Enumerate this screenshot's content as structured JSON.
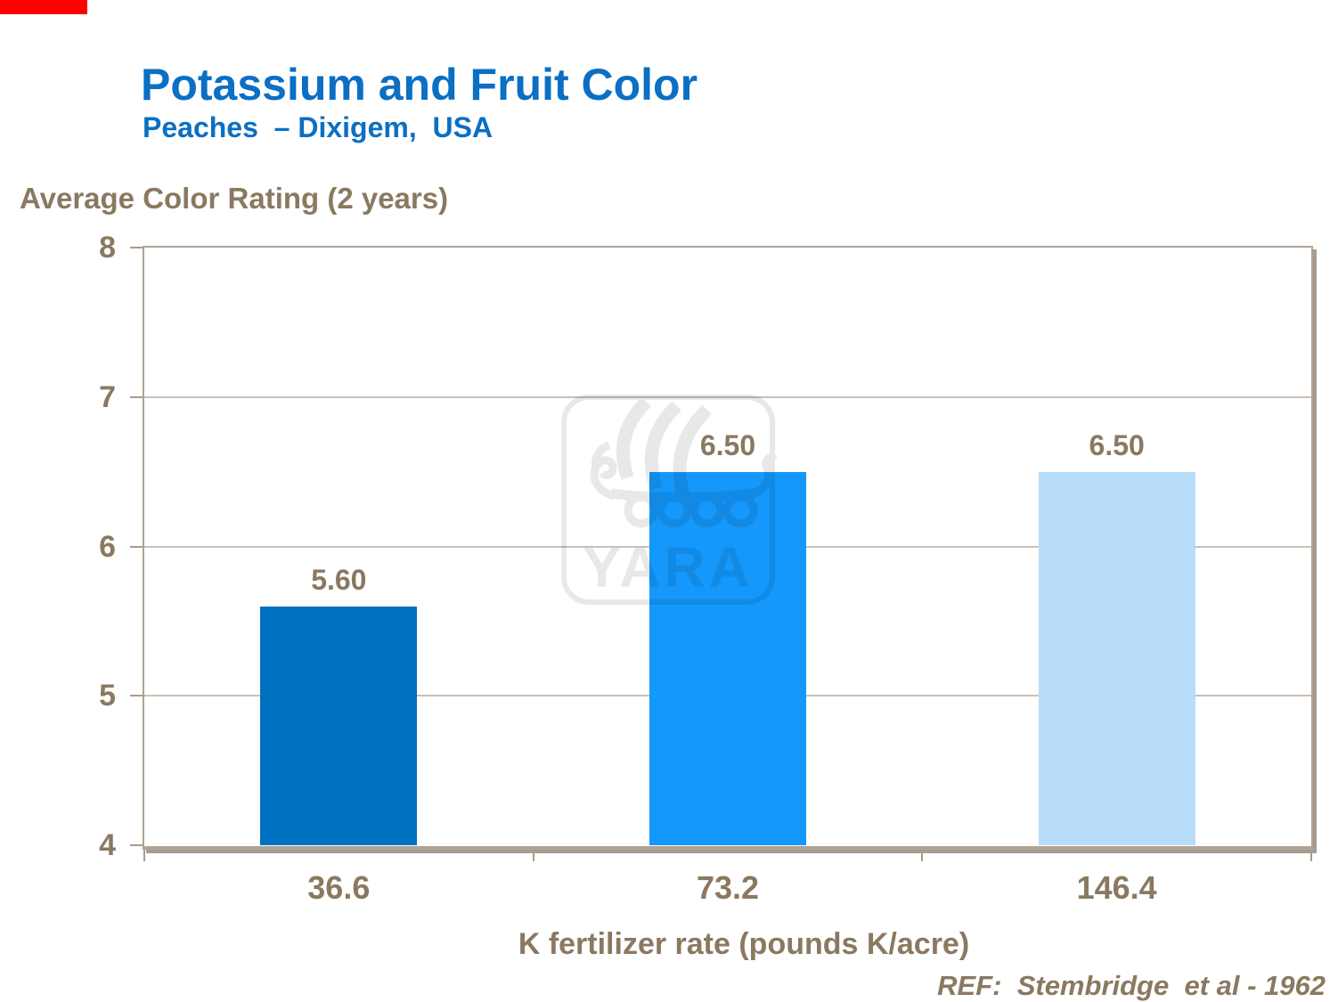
{
  "chart_data": {
    "type": "bar",
    "title": "Potassium and Fruit Color",
    "subtitle": "Peaches  – Dixigem,  USA",
    "ylabel": "Average Color Rating (2 years)",
    "xlabel": "K fertilizer rate (pounds K/acre)",
    "categories": [
      "36.6",
      "73.2",
      "146.4"
    ],
    "values": [
      5.6,
      6.5,
      6.5
    ],
    "value_labels": [
      "5.60",
      "6.50",
      "6.50"
    ],
    "bar_colors": [
      "#0070C0",
      "#1498FB",
      "#B7DDFB"
    ],
    "ylim": [
      4,
      8
    ],
    "yticks": [
      8,
      7,
      6,
      5,
      4
    ],
    "grid": true,
    "legend": false,
    "watermark": "YARA",
    "reference": "REF:  Stembridge  et al - 1962"
  },
  "slide": {
    "marker_color": "#FF0000",
    "title_color": "#0B6FC3",
    "text_color": "#8A7960",
    "grid_color": "#CBC0B4",
    "axis_color": "#B0A295",
    "shadow_color": "#A89B8E"
  }
}
